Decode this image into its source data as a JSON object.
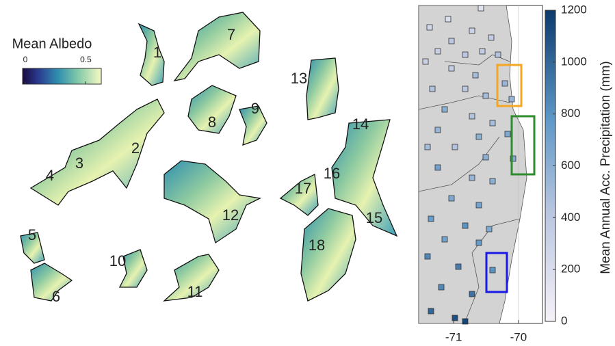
{
  "albedo_panel": {
    "legend_title": "Mean Albedo",
    "colorbar_lim": [
      0,
      0.65
    ],
    "colorbar_ticks": [
      0,
      0.5
    ],
    "glacier_labels": [
      "1",
      "2",
      "3",
      "4",
      "5",
      "6",
      "7",
      "8",
      "9",
      "10",
      "11",
      "12",
      "13",
      "14",
      "15",
      "16",
      "17",
      "18"
    ]
  },
  "precip_panel": {
    "colorbar_label": "Mean Annual Acc. Precipitation (mm)",
    "colorbar_lim": [
      0,
      1200
    ],
    "colorbar_ticks": [
      0,
      200,
      400,
      600,
      800,
      1000,
      1200
    ],
    "xlim": [
      -71.54,
      -69.63
    ],
    "xticks": [
      -71,
      -70
    ],
    "station_precip": [
      150,
      200,
      250,
      300,
      350,
      400,
      300,
      350,
      400,
      450,
      300,
      350,
      500,
      550,
      450,
      400,
      500,
      550,
      600,
      450,
      500,
      550,
      600,
      650,
      500,
      450,
      600,
      650,
      700,
      550,
      600,
      650,
      700,
      750,
      800,
      650,
      700,
      750,
      850,
      900,
      800,
      850,
      950,
      1000,
      1100,
      1150
    ]
  }
}
